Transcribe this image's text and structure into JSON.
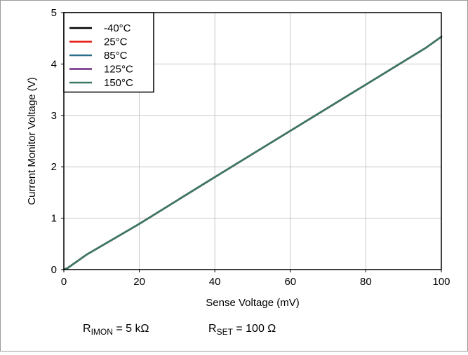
{
  "chart_data": {
    "type": "line",
    "xlabel": "Sense Voltage (mV)",
    "ylabel": "Current Monitor Voltage (V)",
    "xlim": [
      0,
      100
    ],
    "ylim": [
      0,
      5
    ],
    "x_ticks": [
      0,
      20,
      40,
      60,
      80,
      100
    ],
    "y_ticks": [
      0,
      1,
      2,
      3,
      4,
      5
    ],
    "grid": true,
    "legend_position": "top-left",
    "series": [
      {
        "name": "-40°C",
        "color": "#000000",
        "x": [
          0,
          1,
          6,
          20,
          40,
          60,
          80,
          96,
          100
        ],
        "y": [
          0.0,
          0.03,
          0.29,
          0.89,
          1.8,
          2.7,
          3.6,
          4.32,
          4.53
        ]
      },
      {
        "name": "25°C",
        "color": "#e8160f",
        "x": [
          0,
          1,
          6,
          20,
          40,
          60,
          80,
          96,
          100
        ],
        "y": [
          0.0,
          0.03,
          0.29,
          0.89,
          1.8,
          2.7,
          3.6,
          4.32,
          4.53
        ]
      },
      {
        "name": "85°C",
        "color": "#2a6f8a",
        "x": [
          0,
          1,
          6,
          20,
          40,
          60,
          80,
          96,
          100
        ],
        "y": [
          0.0,
          0.03,
          0.29,
          0.89,
          1.8,
          2.7,
          3.6,
          4.32,
          4.53
        ]
      },
      {
        "name": "125°C",
        "color": "#6b2a82",
        "x": [
          0,
          1,
          6,
          20,
          40,
          60,
          80,
          96,
          100
        ],
        "y": [
          0.0,
          0.03,
          0.29,
          0.89,
          1.8,
          2.7,
          3.6,
          4.32,
          4.53
        ]
      },
      {
        "name": "150°C",
        "color": "#3b7a63",
        "x": [
          0,
          1,
          6,
          20,
          40,
          60,
          80,
          96,
          100
        ],
        "y": [
          0.0,
          0.03,
          0.29,
          0.89,
          1.8,
          2.7,
          3.6,
          4.32,
          4.53
        ]
      }
    ],
    "annotations": [
      {
        "main": "R",
        "sub": "IMON",
        "rest": " = 5 kΩ"
      },
      {
        "main": "R",
        "sub": "SET",
        "rest": " = 100 Ω"
      }
    ]
  }
}
